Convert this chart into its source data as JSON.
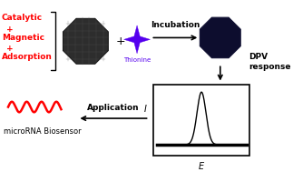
{
  "background_color": "#ffffff",
  "red_color": "#ff0000",
  "thionine_color": "#5500ee",
  "dark_particle_color": "#2d2d2d",
  "navy_particle_color": "#0d0d2e",
  "label_catalytic": "Catalytic",
  "label_plus1": "+",
  "label_magnetic": "Magnetic",
  "label_plus2": "+",
  "label_adsorption": "Adsorption",
  "label_thionine": "Thionine",
  "label_incubation": "Incubation",
  "label_dpv": "DPV",
  "label_response": "response",
  "label_application": "Application",
  "label_mirna": "microRNA Biosensor",
  "label_I": "I",
  "label_E": "E",
  "label_black_plus": "+"
}
